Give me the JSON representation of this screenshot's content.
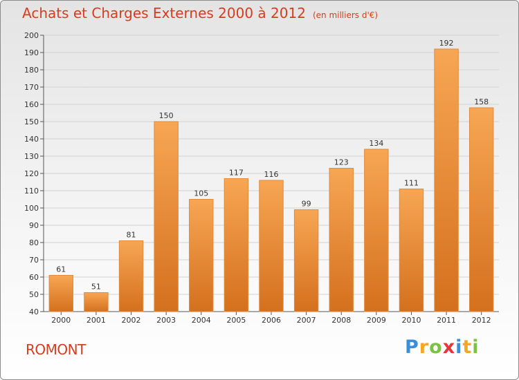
{
  "title": "Achats et Charges Externes 2000 à 2012",
  "subtitle": "(en milliers d'€)",
  "commune": "ROMONT",
  "brand": {
    "letters": [
      "P",
      "r",
      "o",
      "x",
      "i",
      "t",
      "i"
    ],
    "colors": [
      "#3a8fd8",
      "#f5a623",
      "#7cc242",
      "#e8343b",
      "#3a8fd8",
      "#f5a623",
      "#7cc242"
    ]
  },
  "colors": {
    "bar_light": "#f7a653",
    "bar_dark": "#d4701e",
    "title": "#d63c1e"
  },
  "chart_data": {
    "type": "bar",
    "title": "Achats et Charges Externes 2000 à 2012",
    "subtitle": "(en milliers d'€)",
    "categories": [
      "2000",
      "2001",
      "2002",
      "2003",
      "2004",
      "2005",
      "2006",
      "2007",
      "2008",
      "2009",
      "2010",
      "2011",
      "2012"
    ],
    "values": [
      61,
      51,
      81,
      150,
      105,
      117,
      116,
      99,
      123,
      134,
      111,
      192,
      158
    ],
    "ylim": [
      40,
      200
    ],
    "yticks": [
      40,
      50,
      60,
      70,
      80,
      90,
      100,
      110,
      120,
      130,
      140,
      150,
      160,
      170,
      180,
      190,
      200
    ],
    "grid": true,
    "xlabel": "",
    "ylabel": ""
  }
}
